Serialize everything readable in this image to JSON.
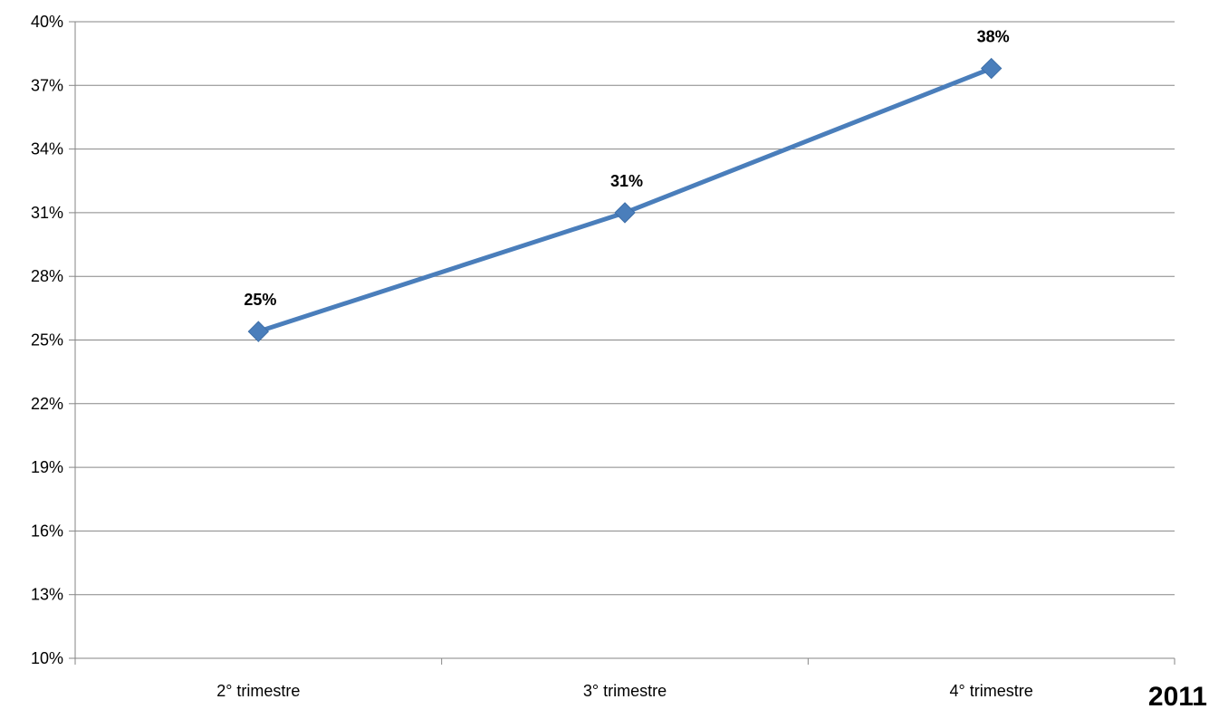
{
  "chart_data": {
    "type": "line",
    "categories": [
      "2° trimestre",
      "3° trimestre",
      "4° trimestre"
    ],
    "series": [
      {
        "values": [
          25.4,
          31.0,
          37.8
        ],
        "data_labels": [
          "25%",
          "31%",
          "38%"
        ],
        "color": "#4a7ebb"
      }
    ],
    "y_ticks": [
      "10%",
      "13%",
      "16%",
      "19%",
      "22%",
      "25%",
      "28%",
      "31%",
      "34%",
      "37%",
      "40%"
    ],
    "ylim": [
      10,
      40
    ],
    "y_unit": "%",
    "grid": true,
    "legend": "none",
    "corner_label": "2011"
  }
}
